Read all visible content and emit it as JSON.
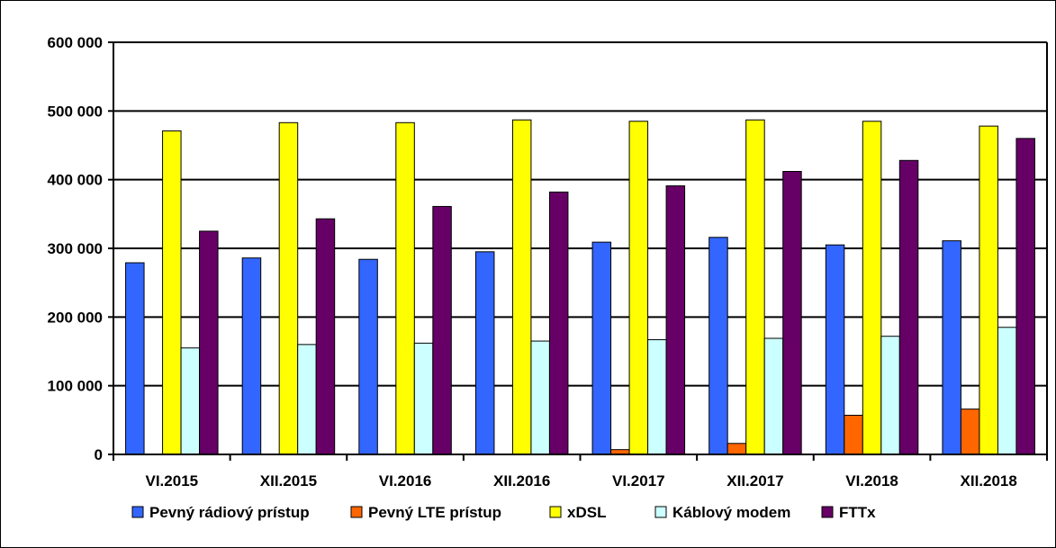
{
  "chart_data": {
    "type": "bar",
    "categories": [
      "VI.2015",
      "XII.2015",
      "VI.2016",
      "XII.2016",
      "VI.2017",
      "XII.2017",
      "VI.2018",
      "XII.2018"
    ],
    "series": [
      {
        "name": "Pevný rádiový prístup",
        "color": "#3366ff",
        "values": [
          279000,
          286000,
          284000,
          295000,
          309000,
          316000,
          305000,
          311000
        ]
      },
      {
        "name": "Pevný LTE prístup",
        "color": "#ff6600",
        "values": [
          0,
          0,
          0,
          0,
          7000,
          16000,
          57000,
          66000
        ]
      },
      {
        "name": "xDSL",
        "color": "#ffff00",
        "values": [
          471000,
          483000,
          483000,
          487000,
          485000,
          487000,
          485000,
          478000
        ]
      },
      {
        "name": "Káblový modem",
        "color": "#ccffff",
        "values": [
          155000,
          160000,
          162000,
          165000,
          167000,
          169000,
          172000,
          185000
        ]
      },
      {
        "name": "FTTx",
        "color": "#660066",
        "values": [
          325000,
          343000,
          361000,
          382000,
          391000,
          412000,
          428000,
          460000
        ]
      }
    ],
    "ylim": [
      0,
      600000
    ],
    "yticks": [
      0,
      100000,
      200000,
      300000,
      400000,
      500000,
      600000
    ],
    "ytick_labels": [
      "0",
      "100 000",
      "200 000",
      "300 000",
      "400 000",
      "500 000",
      "600 000"
    ],
    "grid": true,
    "legend_position": "bottom"
  }
}
